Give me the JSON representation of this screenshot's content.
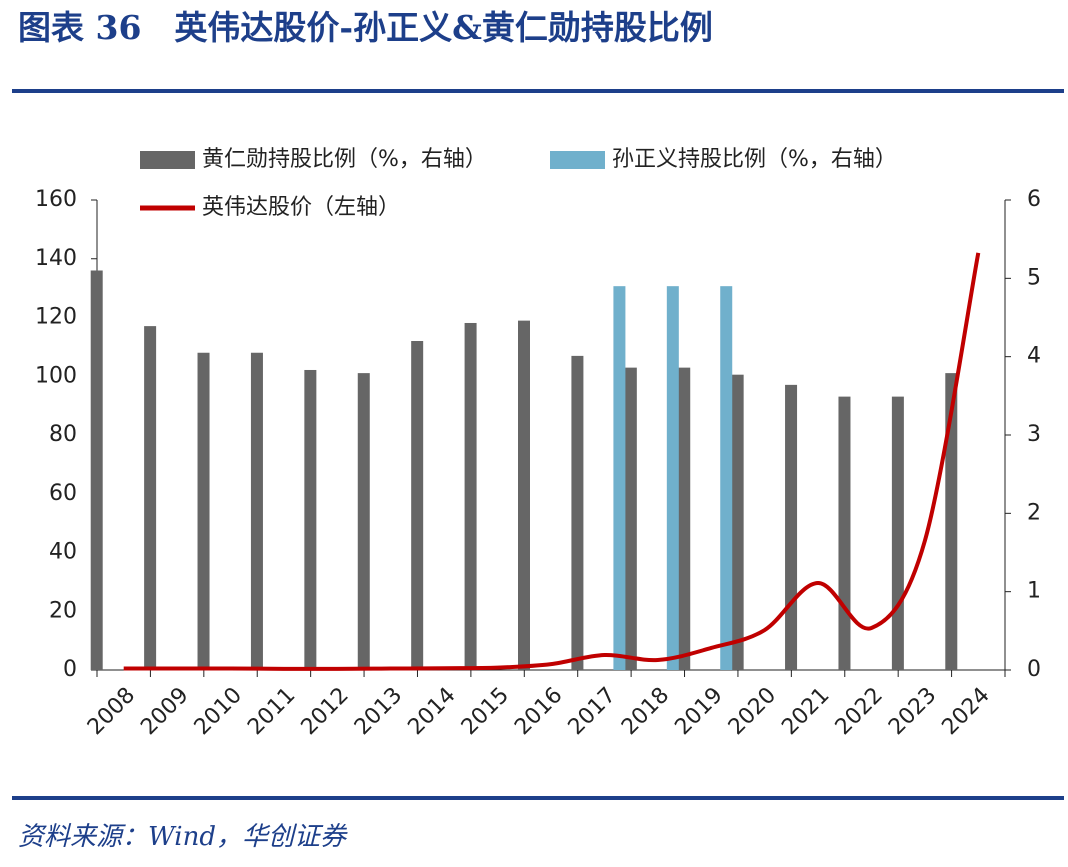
{
  "chart_data": {
    "type": "bar",
    "title": "图表 36　英伟达股价-孙正义&黄仁勋持股比例",
    "source": "资料来源：Wind，华创证券",
    "categories": [
      "2008",
      "2009",
      "2010",
      "2011",
      "2012",
      "2013",
      "2014",
      "2015",
      "2016",
      "2017",
      "2018",
      "2019",
      "2020",
      "2021",
      "2022",
      "2023",
      "2024"
    ],
    "series": [
      {
        "name": "黄仁勋持股比例（%，右轴）",
        "type": "bar",
        "axis": "y2",
        "color": "#666666",
        "values": [
          5.1,
          4.39,
          4.05,
          4.05,
          3.83,
          3.79,
          4.2,
          4.43,
          4.46,
          4.01,
          3.86,
          3.86,
          3.77,
          3.64,
          3.49,
          3.49,
          3.79
        ]
      },
      {
        "name": "孙正义持股比例（%，右轴）",
        "type": "bar",
        "axis": "y2",
        "color": "#70b0cc",
        "values": [
          null,
          null,
          null,
          null,
          null,
          null,
          null,
          null,
          null,
          4.9,
          4.9,
          4.9,
          null,
          null,
          null,
          null,
          null
        ]
      },
      {
        "name": "英伟达股价（左轴）",
        "type": "line",
        "color": "#c00000",
        "values": [
          0.5,
          0.5,
          0.5,
          0.4,
          0.4,
          0.5,
          0.6,
          0.8,
          2,
          5.1,
          3.4,
          7.5,
          13.6,
          29.6,
          14.3,
          44,
          142
        ]
      }
    ],
    "ylim": [
      0,
      160
    ],
    "yticks": [
      0,
      20,
      40,
      60,
      80,
      100,
      120,
      140,
      160
    ],
    "y2lim": [
      0,
      6
    ],
    "y2ticks": [
      0,
      1,
      2,
      3,
      4,
      5,
      6
    ]
  }
}
